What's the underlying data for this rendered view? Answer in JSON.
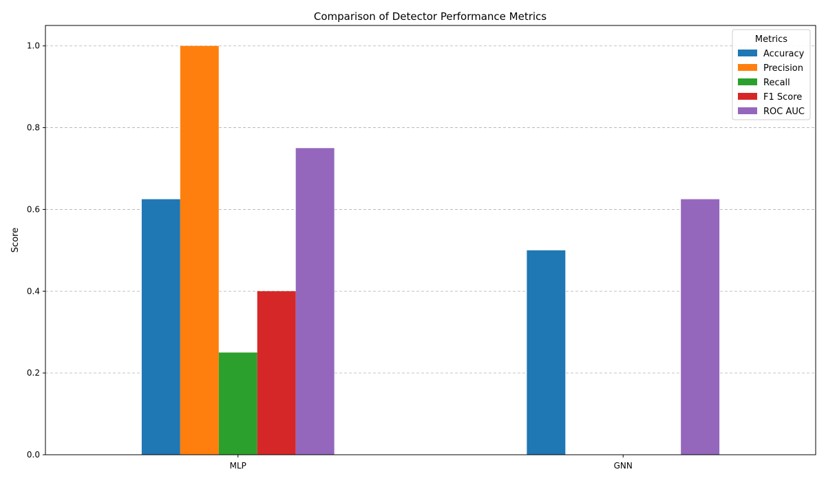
{
  "chart_data": {
    "type": "bar",
    "title": "Comparison of Detector Performance Metrics",
    "xlabel": "",
    "ylabel": "Score",
    "categories": [
      "MLP",
      "GNN"
    ],
    "ylim": [
      0,
      1.05
    ],
    "yticks": [
      "0.0",
      "0.2",
      "0.4",
      "0.6",
      "0.8",
      "1.0"
    ],
    "grid": "y-dashed",
    "legend": {
      "title": "Metrics",
      "placement": "top-right"
    },
    "series": [
      {
        "name": "Accuracy",
        "color": "#1f77b4",
        "values": [
          0.625,
          0.5
        ]
      },
      {
        "name": "Precision",
        "color": "#ff7f0e",
        "values": [
          1.0,
          0.0
        ]
      },
      {
        "name": "Recall",
        "color": "#2ca02c",
        "values": [
          0.25,
          0.0
        ]
      },
      {
        "name": "F1 Score",
        "color": "#d62728",
        "values": [
          0.4,
          0.0
        ]
      },
      {
        "name": "ROC AUC",
        "color": "#9467bd",
        "values": [
          0.75,
          0.625
        ]
      }
    ]
  }
}
